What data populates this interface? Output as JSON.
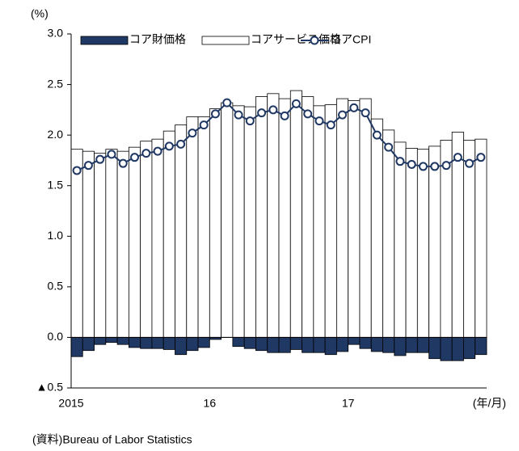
{
  "chart_data": {
    "type": "bar",
    "ylabel": "(%)",
    "xlabel": "(年/月)",
    "source": "(資料)Bureau of  Labor Statistics",
    "categories": [
      "2015",
      null,
      null,
      null,
      null,
      null,
      null,
      null,
      null,
      null,
      null,
      null,
      "16",
      null,
      null,
      null,
      null,
      null,
      null,
      null,
      null,
      null,
      null,
      null,
      "17",
      null,
      null,
      null,
      null,
      null,
      null,
      null,
      null,
      null,
      null,
      null
    ],
    "series": [
      {
        "name": "コア財価格",
        "type": "bar",
        "color": "#203864",
        "values": [
          -0.19,
          -0.13,
          -0.07,
          -0.05,
          -0.07,
          -0.1,
          -0.11,
          -0.11,
          -0.12,
          -0.17,
          -0.13,
          -0.1,
          -0.02,
          0.01,
          -0.09,
          -0.11,
          -0.13,
          -0.15,
          -0.15,
          -0.12,
          -0.15,
          -0.15,
          -0.17,
          -0.14,
          -0.07,
          -0.11,
          -0.14,
          -0.15,
          -0.18,
          -0.15,
          -0.15,
          -0.21,
          -0.23,
          -0.23,
          -0.21,
          -0.17
        ]
      },
      {
        "name": "コアサービス価格",
        "type": "bar",
        "color": "#ffffff",
        "values": [
          1.86,
          1.84,
          1.82,
          1.86,
          1.84,
          1.88,
          1.94,
          1.96,
          2.04,
          2.1,
          2.18,
          2.18,
          2.26,
          2.32,
          2.29,
          2.28,
          2.38,
          2.41,
          2.36,
          2.44,
          2.38,
          2.29,
          2.3,
          2.36,
          2.34,
          2.36,
          2.16,
          2.05,
          1.93,
          1.87,
          1.86,
          1.89,
          1.95,
          2.03,
          1.95,
          1.96
        ]
      },
      {
        "name": "コアCPI",
        "type": "line",
        "color": "#203864",
        "values": [
          1.65,
          1.7,
          1.76,
          1.81,
          1.72,
          1.78,
          1.82,
          1.84,
          1.89,
          1.91,
          2.02,
          2.1,
          2.21,
          2.32,
          2.2,
          2.14,
          2.22,
          2.25,
          2.19,
          2.31,
          2.21,
          2.14,
          2.1,
          2.2,
          2.27,
          2.22,
          2.0,
          1.88,
          1.74,
          1.71,
          1.69,
          1.69,
          1.7,
          1.78,
          1.72,
          1.78
        ]
      }
    ],
    "ylim": [
      -0.5,
      3
    ],
    "yticks": [
      {
        "value": -0.5,
        "label": "▲0.5"
      },
      {
        "value": 0,
        "label": "0.0"
      },
      0.5,
      {
        "value": 1,
        "label": "1.0"
      },
      1.5,
      {
        "value": 2,
        "label": "2.0"
      },
      2.5,
      {
        "value": 3,
        "label": "3.0"
      }
    ],
    "legend": "top"
  }
}
